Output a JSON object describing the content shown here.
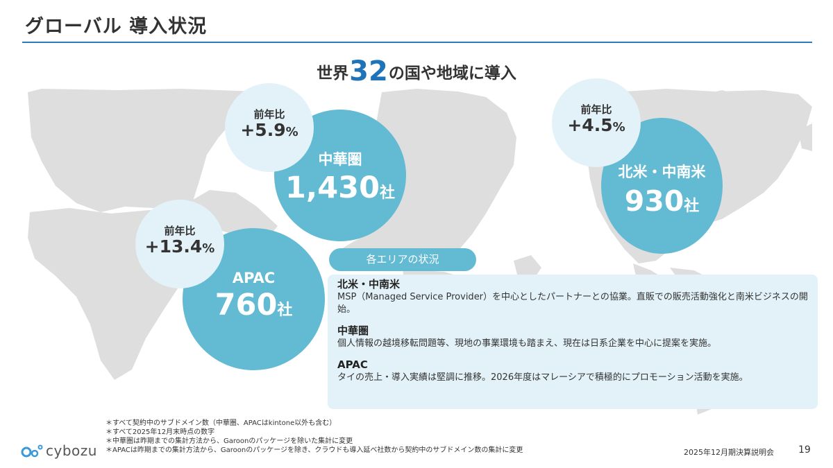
{
  "slide": {
    "title": "グローバル 導入状況",
    "headline": {
      "prefix": "世界",
      "number": "32",
      "suffix": "の国や地域に導入"
    }
  },
  "regions": {
    "china": {
      "name": "中華圏",
      "count": "1,430",
      "unit": "社",
      "yoy_label": "前年比",
      "yoy_value": "+5.9",
      "yoy_unit": "%"
    },
    "north_america": {
      "name": "北米・中南米",
      "count": "930",
      "unit": "社",
      "yoy_label": "前年比",
      "yoy_value": "+4.5",
      "yoy_unit": "%"
    },
    "apac": {
      "name": "APAC",
      "count": "760",
      "unit": "社",
      "yoy_label": "前年比",
      "yoy_value": "+13.4",
      "yoy_unit": "%"
    }
  },
  "status_panel": {
    "heading": "各エリアの状況",
    "sections": [
      {
        "title": "北米・中南米",
        "body": "MSP（Managed Service Provider）を中心としたパートナーとの協業。直販での販売活動強化と南米ビジネスの開始。"
      },
      {
        "title": "中華圏",
        "body": "個人情報の越境移転問題等、現地の事業環境も踏まえ、現在は日系企業を中心に提案を実施。"
      },
      {
        "title": "APAC",
        "body": "タイの売上・導入実績は堅調に推移。2026年度はマレーシアで積極的にプロモーション活動を実施。"
      }
    ]
  },
  "notes": [
    "＊すべて契約中のサブドメイン数（中華圏、APACはkintone以外も含む）",
    "＊すべて2025年12月末時点の数字",
    "＊中華圏は昨期までの集計方法から、Garoonのパッケージを除いた集計に変更",
    "＊APACは昨期までの集計方法から、Garoonのパッケージを除き、クラウドも導入延べ社数から契約中のサブドメイン数の集計に変更"
  ],
  "footer": {
    "brand": "cybozu",
    "event": "2025年12月期決算説明会",
    "page": "19"
  },
  "colors": {
    "accent_blue": "#1f74b9",
    "circle_teal": "#62bad3",
    "bubble_light": "#e3f2f8",
    "map_gray": "#dedede"
  }
}
